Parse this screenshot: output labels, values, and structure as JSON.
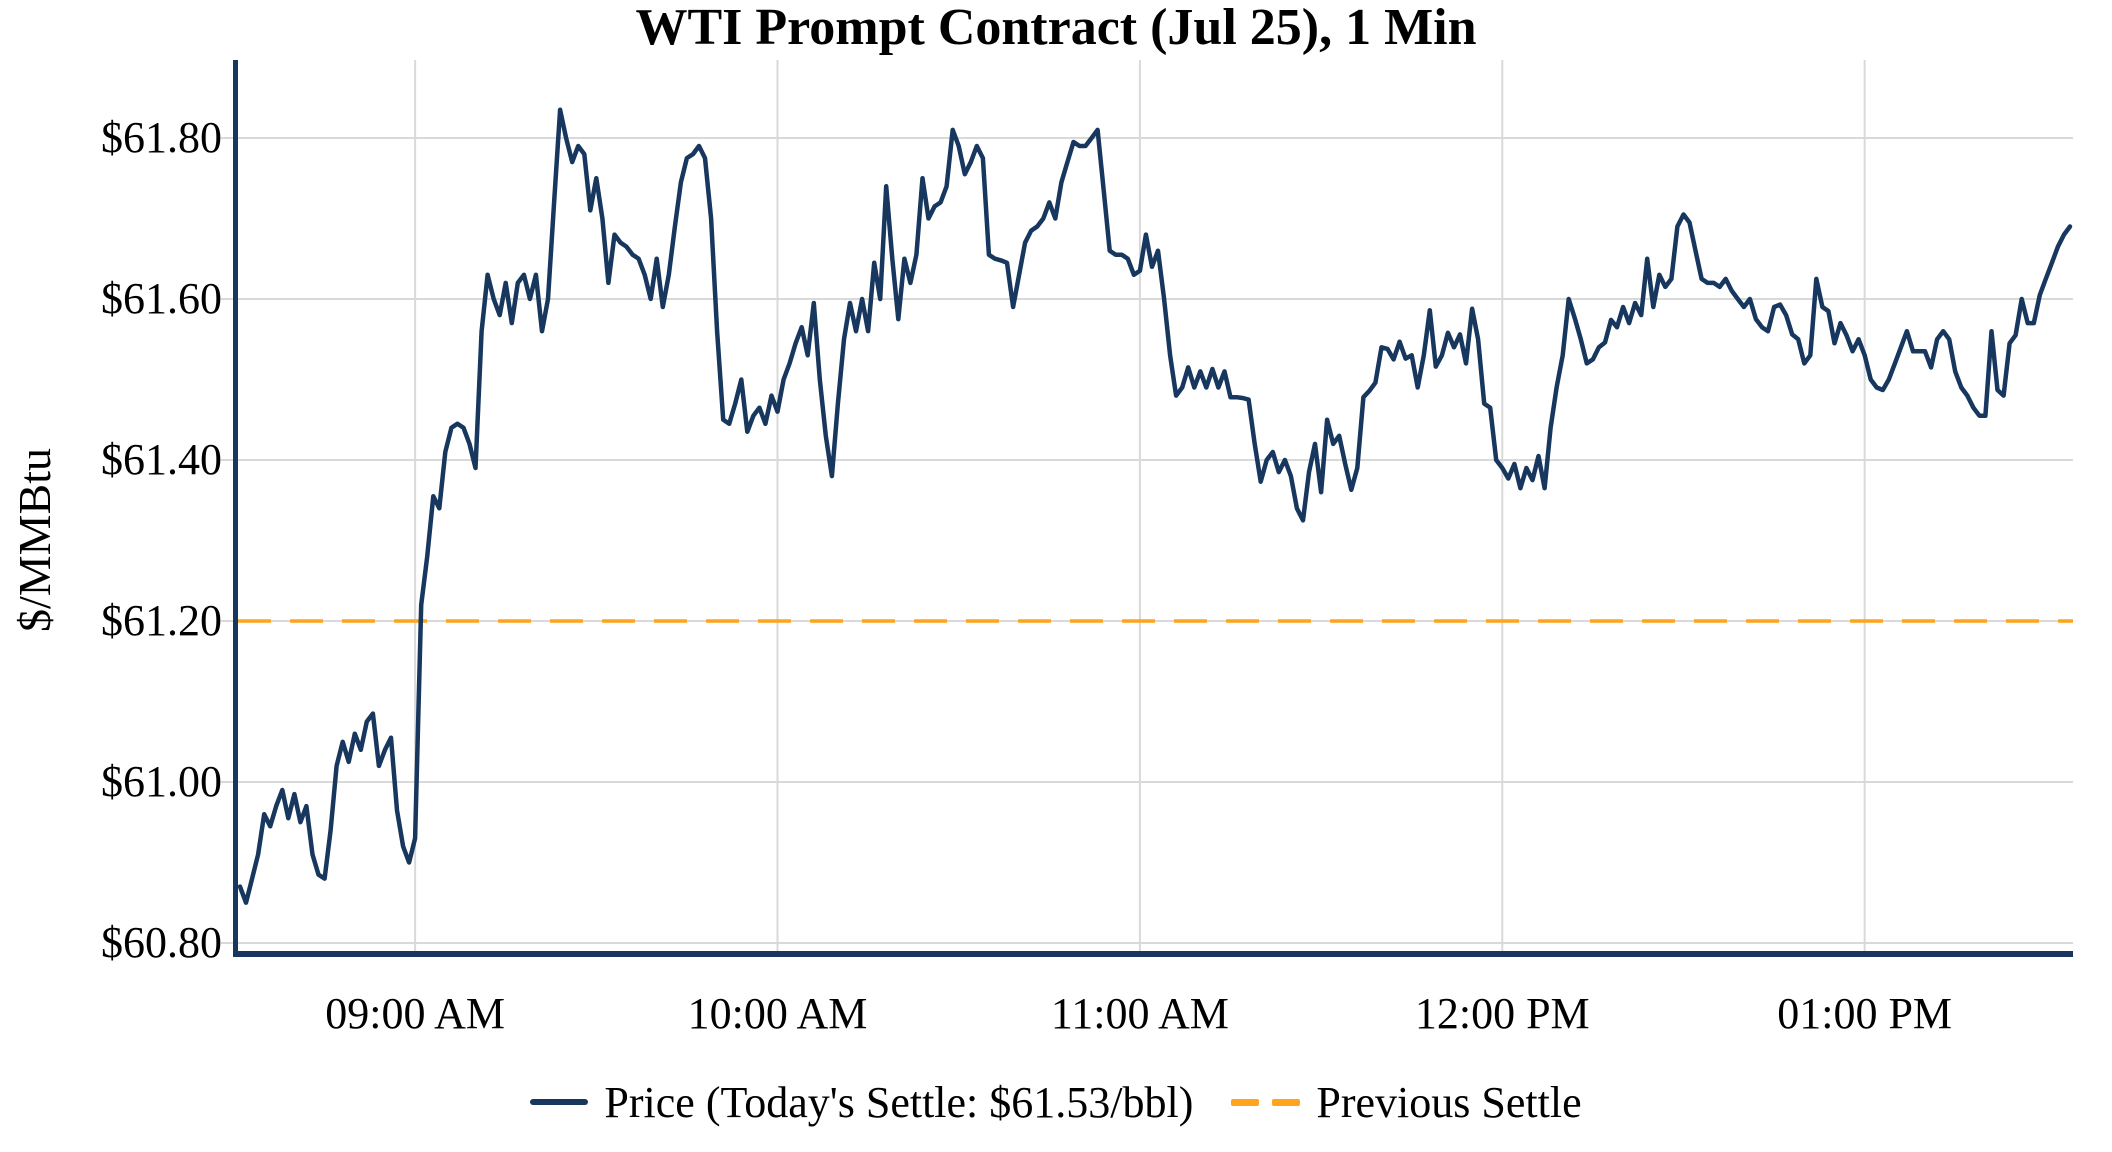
{
  "title": "WTI Prompt Contract (Jul 25), 1 Min",
  "y_axis": {
    "label": "$/MMBtu",
    "ticks": [
      {
        "label": "$61.80",
        "value": 61.8
      },
      {
        "label": "$61.60",
        "value": 61.6
      },
      {
        "label": "$61.40",
        "value": 61.4
      },
      {
        "label": "$61.20",
        "value": 61.2
      },
      {
        "label": "$61.00",
        "value": 61.0
      },
      {
        "label": "$60.80",
        "value": 60.8
      }
    ]
  },
  "x_axis": {
    "ticks": [
      {
        "label": "09:00 AM",
        "minute_index": 29
      },
      {
        "label": "10:00 AM",
        "minute_index": 89
      },
      {
        "label": "11:00 AM",
        "minute_index": 149
      },
      {
        "label": "12:00 PM",
        "minute_index": 209
      },
      {
        "label": "01:00 PM",
        "minute_index": 269
      }
    ]
  },
  "legend": {
    "price_label": "Price (Today's Settle: $61.53/bbl)",
    "previous_settle_label": "Previous Settle"
  },
  "colors": {
    "price_line": "#17375E",
    "previous_settle_line": "#FFA41C",
    "gridline": "#D9D9D9",
    "axis_spine": "#17375E",
    "text": "#000000",
    "background": "#FFFFFF"
  },
  "chart_data": {
    "type": "line",
    "title": "WTI Prompt Contract (Jul 25), 1 Min",
    "xlabel": "",
    "ylabel": "$/MMBtu",
    "x_start": "08:31 AM",
    "x_end": "01:34 PM",
    "interval_minutes": 1,
    "ylim": [
      60.79,
      61.9
    ],
    "grid": true,
    "legend_position": "bottom",
    "today_settle": 61.53,
    "previous_settle": 61.2,
    "xtick_labels": [
      "09:00 AM",
      "10:00 AM",
      "11:00 AM",
      "12:00 PM",
      "01:00 PM"
    ],
    "ytick_values": [
      60.8,
      61.0,
      61.2,
      61.4,
      61.6,
      61.8
    ],
    "series": [
      {
        "name": "Price (Today's Settle: $61.53/bbl)",
        "style": "solid",
        "color": "#17375E",
        "values": [
          60.87,
          60.85,
          60.88,
          60.91,
          60.96,
          60.945,
          60.97,
          60.99,
          60.955,
          60.985,
          60.95,
          60.97,
          60.91,
          60.885,
          60.88,
          60.94,
          61.02,
          61.05,
          61.025,
          61.06,
          61.04,
          61.075,
          61.085,
          61.02,
          61.04,
          61.055,
          60.965,
          60.92,
          60.9,
          60.93,
          61.22,
          61.28,
          61.355,
          61.34,
          61.41,
          61.44,
          61.445,
          61.44,
          61.42,
          61.39,
          61.56,
          61.63,
          61.6,
          61.58,
          61.62,
          61.57,
          61.62,
          61.63,
          61.6,
          61.63,
          61.56,
          61.6,
          61.72,
          61.835,
          61.8,
          61.77,
          61.79,
          61.78,
          61.71,
          61.75,
          61.7,
          61.62,
          61.68,
          61.67,
          61.665,
          61.655,
          61.65,
          61.63,
          61.6,
          61.65,
          61.59,
          61.63,
          61.69,
          61.745,
          61.775,
          61.78,
          61.79,
          61.775,
          61.7,
          61.56,
          61.45,
          61.445,
          61.47,
          61.5,
          61.435,
          61.455,
          61.465,
          61.445,
          61.48,
          61.46,
          61.5,
          61.52,
          61.545,
          61.565,
          61.53,
          61.595,
          61.5,
          61.43,
          61.38,
          61.47,
          61.55,
          61.595,
          61.56,
          61.6,
          61.56,
          61.645,
          61.6,
          61.74,
          61.65,
          61.575,
          61.65,
          61.62,
          61.655,
          61.75,
          61.7,
          61.715,
          61.72,
          61.74,
          61.81,
          61.79,
          61.755,
          61.77,
          61.79,
          61.775,
          61.655,
          61.65,
          61.648,
          61.645,
          61.59,
          61.63,
          61.67,
          61.685,
          61.69,
          61.7,
          61.72,
          61.7,
          61.745,
          61.77,
          61.795,
          61.79,
          61.79,
          61.8,
          61.81,
          61.735,
          61.66,
          61.655,
          61.655,
          61.65,
          61.63,
          61.635,
          61.68,
          61.64,
          61.66,
          61.6,
          61.53,
          61.48,
          61.49,
          61.515,
          61.49,
          61.51,
          61.49,
          61.513,
          61.49,
          61.51,
          61.478,
          61.478,
          61.477,
          61.475,
          61.42,
          61.373,
          61.4,
          61.41,
          61.385,
          61.4,
          61.38,
          61.34,
          61.325,
          61.385,
          61.42,
          61.36,
          61.45,
          61.42,
          61.43,
          61.395,
          61.363,
          61.39,
          61.478,
          61.486,
          61.496,
          61.54,
          61.538,
          61.525,
          61.547,
          61.526,
          61.53,
          61.49,
          61.53,
          61.586,
          61.516,
          61.53,
          61.558,
          61.54,
          61.556,
          61.52,
          61.588,
          61.55,
          61.47,
          61.465,
          61.4,
          61.39,
          61.377,
          61.395,
          61.365,
          61.39,
          61.375,
          61.405,
          61.365,
          61.44,
          61.49,
          61.53,
          61.6,
          61.576,
          61.55,
          61.52,
          61.525,
          61.54,
          61.546,
          61.574,
          61.565,
          61.59,
          61.57,
          61.595,
          61.58,
          61.65,
          61.59,
          61.63,
          61.615,
          61.625,
          61.69,
          61.705,
          61.695,
          61.66,
          61.625,
          61.62,
          61.62,
          61.615,
          61.625,
          61.61,
          61.6,
          61.59,
          61.6,
          61.575,
          61.565,
          61.56,
          61.59,
          61.593,
          61.58,
          61.556,
          61.55,
          61.52,
          61.53,
          61.625,
          61.59,
          61.585,
          61.545,
          61.57,
          61.555,
          61.535,
          61.55,
          61.53,
          61.5,
          61.49,
          61.487,
          61.5,
          61.52,
          61.54,
          61.56,
          61.535,
          61.535,
          61.535,
          61.515,
          61.55,
          61.56,
          61.55,
          61.51,
          61.49,
          61.48,
          61.465,
          61.455,
          61.455,
          61.56,
          61.487,
          61.48,
          61.545,
          61.555,
          61.6,
          61.57,
          61.57,
          61.605,
          61.625,
          61.645,
          61.665,
          61.68,
          61.69
        ]
      },
      {
        "name": "Previous Settle",
        "style": "dashed-horizontal",
        "color": "#FFA41C",
        "value": 61.2
      }
    ]
  }
}
